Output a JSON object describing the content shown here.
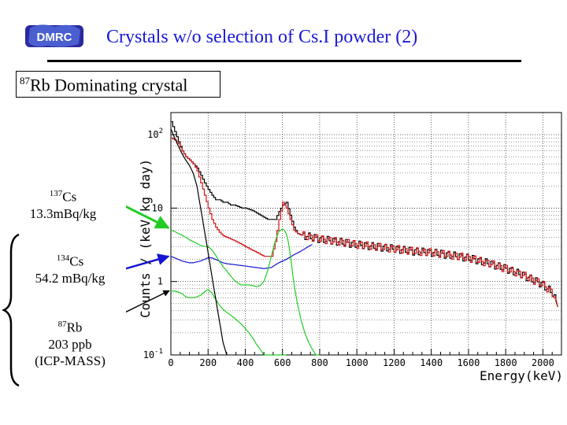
{
  "header": {
    "logo_text": "DMRC",
    "title": "Crystals w/o selection of  Cs.I powder (2)"
  },
  "crystal_label": {
    "isotope_mass": "87",
    "text": "Rb Dominating crystal"
  },
  "annotations": {
    "cs137": {
      "mass": "137",
      "symbol": "Cs",
      "activity": "13.3mBq/kg"
    },
    "cs134": {
      "mass": "134",
      "symbol": "Cs",
      "activity": "54.2 mBq/kg"
    },
    "rb87": {
      "mass": "87",
      "symbol": "Rb",
      "amount": "203 ppb",
      "method": "(ICP-MASS)"
    }
  },
  "arrow_colors": {
    "cs137": "#22cc22",
    "cs134": "#1515d0",
    "rb87": "#000000"
  },
  "chart_data": {
    "type": "line",
    "title": "",
    "xlabel": "Energy(keV)",
    "ylabel": "Counts / (keV kg day)",
    "xlim": [
      0,
      2100
    ],
    "ylim": [
      0.1,
      200
    ],
    "log_y": true,
    "grid": true,
    "x_ticks": [
      0,
      200,
      400,
      600,
      800,
      1000,
      1200,
      1400,
      1600,
      1800,
      2000
    ],
    "x_tick_labels": [
      "0",
      "200",
      "400",
      "600",
      "800",
      "1000",
      "1200",
      "1400",
      "1600",
      "1800",
      "2000"
    ],
    "y_tick_labels": [
      {
        "base": "10",
        "exp": "-1",
        "value": 0.1
      },
      {
        "base": "1",
        "exp": "",
        "value": 1
      },
      {
        "base": "10",
        "exp": "",
        "value": 10
      },
      {
        "base": "10",
        "exp": "2",
        "value": 100
      }
    ],
    "series": [
      {
        "color": "#000000",
        "x": [
          0,
          20,
          40,
          60,
          80,
          100,
          120,
          140,
          160,
          180,
          200,
          220,
          240,
          260,
          280,
          300,
          320,
          340,
          360,
          380,
          400,
          440,
          480,
          520,
          560,
          580,
          600,
          620,
          640,
          660,
          680,
          700,
          720,
          760,
          800,
          900,
          1000,
          1100,
          1200,
          1300,
          1400,
          1500,
          1600,
          1700,
          1800,
          1900,
          2000,
          2050,
          2080
        ],
        "y": [
          150,
          110,
          80,
          60,
          50,
          45,
          40,
          35,
          28,
          22,
          18,
          15,
          13,
          13,
          12,
          12,
          11,
          11,
          10.5,
          10,
          10,
          9.2,
          8,
          7,
          7,
          9,
          11,
          12,
          8,
          5.5,
          4.5,
          4.3,
          4.2,
          4,
          3.8,
          3.5,
          3.2,
          3,
          2.8,
          2.6,
          2.5,
          2.3,
          2.1,
          1.8,
          1.5,
          1.2,
          0.9,
          0.7,
          0.45
        ]
      },
      {
        "color": "#d01515",
        "x": [
          0,
          20,
          40,
          60,
          80,
          100,
          120,
          140,
          160,
          180,
          200,
          220,
          240,
          260,
          280,
          300,
          340,
          380,
          420,
          460,
          500,
          540,
          560,
          580,
          600,
          620,
          640,
          660,
          680,
          700,
          720,
          760,
          800,
          900,
          1000,
          1100,
          1200,
          1300,
          1400,
          1500,
          1600,
          1700,
          1800,
          1900,
          2000,
          2050,
          2080
        ],
        "y": [
          90,
          85,
          75,
          60,
          50,
          45,
          40,
          32,
          22,
          15,
          10,
          7,
          5.5,
          4.7,
          4.2,
          4,
          3.6,
          3.2,
          2.8,
          2.5,
          2.2,
          2.2,
          3.5,
          7,
          12,
          10,
          7,
          5,
          4.5,
          4.3,
          4.2,
          4,
          3.8,
          3.5,
          3.2,
          3,
          2.8,
          2.6,
          2.5,
          2.3,
          2.1,
          1.8,
          1.5,
          1.2,
          0.9,
          0.7,
          0.45
        ]
      },
      {
        "color": "#1515d0",
        "x": [
          0,
          20,
          40,
          60,
          80,
          100,
          120,
          140,
          160,
          180,
          200,
          220,
          240,
          260,
          280,
          300,
          340,
          380,
          420,
          460,
          500,
          540,
          580,
          620,
          660,
          700,
          740,
          760
        ],
        "y": [
          2.2,
          2.1,
          2.0,
          1.9,
          1.85,
          1.8,
          1.8,
          1.85,
          1.9,
          2.0,
          2.1,
          2.1,
          2.0,
          1.9,
          1.8,
          1.75,
          1.7,
          1.65,
          1.6,
          1.55,
          1.5,
          1.55,
          1.8,
          2.0,
          2.3,
          2.6,
          3.0,
          3.2
        ]
      },
      {
        "color": "#22cc22",
        "x": [
          0,
          20,
          40,
          60,
          80,
          100,
          120,
          140,
          160,
          180,
          200,
          220,
          240,
          260,
          280,
          300,
          320,
          340,
          360,
          380,
          400,
          420,
          440,
          460,
          480,
          500,
          520,
          540,
          560,
          580,
          600,
          610,
          620,
          630,
          640,
          650,
          660,
          680,
          700,
          720,
          740,
          760,
          780,
          800
        ],
        "y": [
          5,
          4.8,
          4.5,
          4.3,
          4,
          3.7,
          3.5,
          3.3,
          3.1,
          3.0,
          3.0,
          2.7,
          2.3,
          1.9,
          1.6,
          1.4,
          1.2,
          1.05,
          0.95,
          0.9,
          0.9,
          0.9,
          0.88,
          0.85,
          0.88,
          1.0,
          1.4,
          2.2,
          3.5,
          4.8,
          5.2,
          5.0,
          4.5,
          3.6,
          2.5,
          1.6,
          1.0,
          0.5,
          0.3,
          0.2,
          0.15,
          0.12,
          0.1,
          0.1
        ]
      },
      {
        "color": "#22cc22",
        "x": [
          0,
          20,
          40,
          60,
          80,
          100,
          120,
          140,
          160,
          180,
          200,
          220,
          240,
          260,
          280,
          300,
          320,
          340,
          360,
          380,
          400,
          420,
          440,
          460,
          480,
          500,
          520,
          540,
          560,
          580,
          600,
          610,
          620
        ],
        "y": [
          0.75,
          0.74,
          0.72,
          0.68,
          0.62,
          0.6,
          0.6,
          0.62,
          0.65,
          0.72,
          0.78,
          0.7,
          0.58,
          0.48,
          0.42,
          0.38,
          0.35,
          0.32,
          0.29,
          0.26,
          0.23,
          0.2,
          0.17,
          0.14,
          0.12,
          0.1,
          0.1,
          0.1,
          0.1,
          0.1,
          0.1,
          0.1,
          0.1
        ]
      },
      {
        "color": "#000000",
        "x": [
          0,
          20,
          40,
          60,
          80,
          100,
          120,
          140,
          160,
          180,
          200,
          220,
          240,
          260,
          280,
          300
        ],
        "y": [
          120,
          90,
          70,
          55,
          45,
          38,
          30,
          20,
          10,
          5,
          2.5,
          1.2,
          0.6,
          0.3,
          0.15,
          0.1
        ]
      }
    ]
  }
}
